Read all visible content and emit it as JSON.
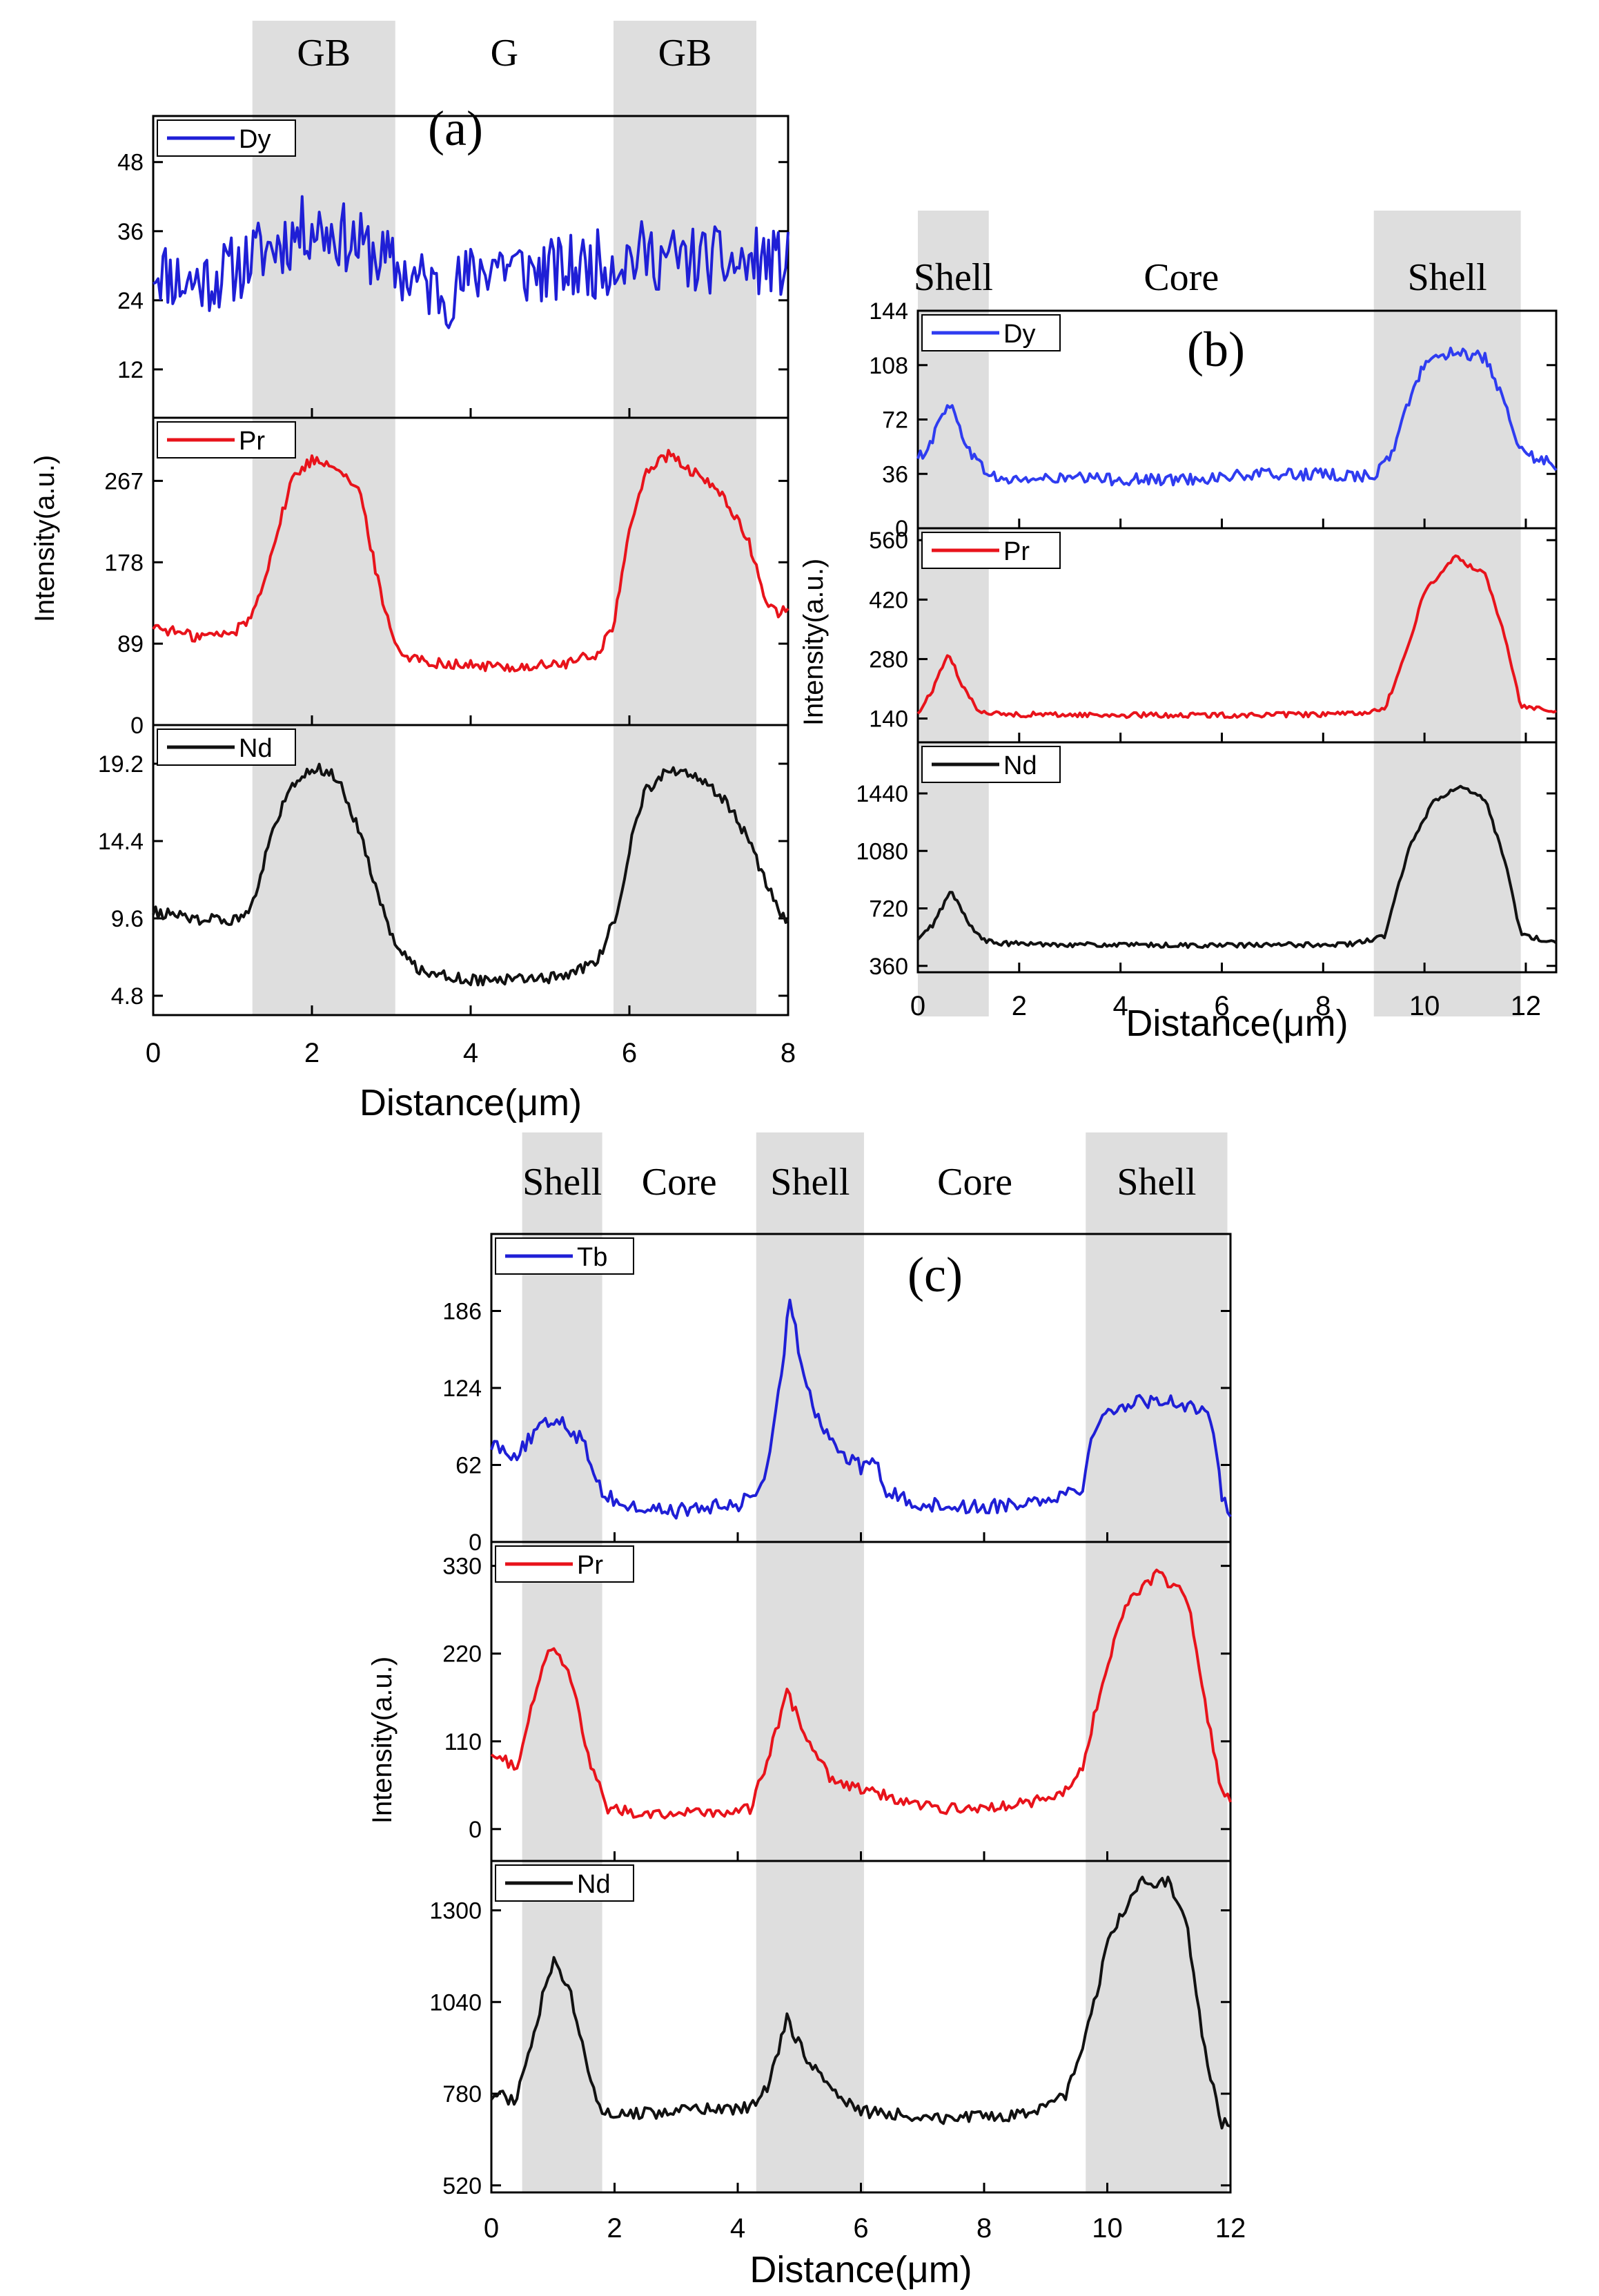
{
  "chart_data": [
    {
      "panel_label": "(a)",
      "type": "line",
      "title": "",
      "xlabel": "Distance(μm)",
      "ylabel": "Intensity(a.u.)",
      "xlim": [
        0,
        8
      ],
      "xticks": [
        "0",
        "2",
        "4",
        "6",
        "8"
      ],
      "shaded_regions": [
        {
          "label": "GB",
          "from": 1.25,
          "to": 3.05
        },
        {
          "label": "G",
          "from": 3.05,
          "to": 5.8,
          "shaded": false
        },
        {
          "label": "GB",
          "from": 5.8,
          "to": 7.6
        }
      ],
      "series": [
        {
          "name": "Dy",
          "color": "#1f1fd6",
          "ylim": [
            3.6,
            56
          ],
          "yticks": [
            "12",
            "24",
            "36",
            "48"
          ],
          "profile": [
            [
              0,
              30
            ],
            [
              0.4,
              27
            ],
            [
              0.8,
              28
            ],
            [
              1.1,
              30
            ],
            [
              1.3,
              32
            ],
            [
              1.6,
              34
            ],
            [
              2.0,
              37
            ],
            [
              2.4,
              35
            ],
            [
              2.8,
              32
            ],
            [
              3.1,
              29
            ],
            [
              3.4,
              27
            ],
            [
              3.7,
              25
            ],
            [
              4.0,
              28
            ],
            [
              4.3,
              31
            ],
            [
              4.7,
              29
            ],
            [
              5.1,
              29
            ],
            [
              5.5,
              30
            ],
            [
              5.8,
              31
            ],
            [
              6.2,
              32
            ],
            [
              6.6,
              31
            ],
            [
              7.0,
              31
            ],
            [
              7.4,
              30
            ],
            [
              7.7,
              31
            ],
            [
              8.0,
              30
            ]
          ],
          "noise": 6
        },
        {
          "name": "Pr",
          "color": "#e8131b",
          "ylim": [
            0,
            336
          ],
          "yticks": [
            "0",
            "89",
            "178",
            "267"
          ],
          "profile": [
            [
              0,
              108
            ],
            [
              0.5,
              97
            ],
            [
              1.0,
              100
            ],
            [
              1.25,
              120
            ],
            [
              1.5,
              190
            ],
            [
              1.75,
              270
            ],
            [
              2.0,
              290
            ],
            [
              2.3,
              285
            ],
            [
              2.6,
              255
            ],
            [
              2.9,
              130
            ],
            [
              3.1,
              80
            ],
            [
              3.4,
              70
            ],
            [
              4.0,
              65
            ],
            [
              4.6,
              63
            ],
            [
              5.2,
              67
            ],
            [
              5.6,
              78
            ],
            [
              5.8,
              110
            ],
            [
              6.0,
              210
            ],
            [
              6.2,
              278
            ],
            [
              6.5,
              295
            ],
            [
              6.9,
              270
            ],
            [
              7.2,
              250
            ],
            [
              7.5,
              200
            ],
            [
              7.7,
              140
            ],
            [
              7.9,
              120
            ],
            [
              8.0,
              130
            ]
          ],
          "noise": 6
        },
        {
          "name": "Nd",
          "color": "#111111",
          "ylim": [
            3.6,
            21.6
          ],
          "yticks": [
            "4.8",
            "9.6",
            "14.4",
            "19.2"
          ],
          "profile": [
            [
              0,
              10.0
            ],
            [
              0.5,
              9.6
            ],
            [
              1.0,
              9.4
            ],
            [
              1.25,
              10.5
            ],
            [
              1.5,
              15.0
            ],
            [
              1.75,
              18.0
            ],
            [
              2.0,
              19.0
            ],
            [
              2.3,
              18.5
            ],
            [
              2.6,
              15.0
            ],
            [
              2.9,
              10.0
            ],
            [
              3.1,
              7.5
            ],
            [
              3.4,
              6.3
            ],
            [
              4.0,
              5.8
            ],
            [
              4.6,
              5.8
            ],
            [
              5.2,
              6.0
            ],
            [
              5.6,
              7.0
            ],
            [
              5.85,
              10.0
            ],
            [
              6.0,
              14.0
            ],
            [
              6.2,
              17.5
            ],
            [
              6.5,
              18.8
            ],
            [
              6.9,
              18.2
            ],
            [
              7.2,
              17.0
            ],
            [
              7.5,
              14.5
            ],
            [
              7.7,
              12.0
            ],
            [
              7.9,
              10.0
            ],
            [
              8.0,
              9.5
            ]
          ],
          "noise": 0.35
        }
      ]
    },
    {
      "panel_label": "(b)",
      "type": "line",
      "title": "",
      "xlabel": "Distance(μm)",
      "ylabel": "Intensity(a.u.)",
      "xlim": [
        0,
        12.6
      ],
      "xticks": [
        "0",
        "2",
        "4",
        "6",
        "8",
        "10",
        "12"
      ],
      "shaded_regions": [
        {
          "label": "Shell",
          "from": 0,
          "to": 1.4
        },
        {
          "label": "Core",
          "from": 1.4,
          "to": 9.0,
          "shaded": false
        },
        {
          "label": "Shell",
          "from": 9.0,
          "to": 11.9
        }
      ],
      "series": [
        {
          "name": "Dy",
          "color": "#2f3cf0",
          "ylim": [
            0,
            144
          ],
          "yticks": [
            "0",
            "36",
            "72",
            "108",
            "144"
          ],
          "profile": [
            [
              0,
              45
            ],
            [
              0.3,
              60
            ],
            [
              0.6,
              85
            ],
            [
              0.9,
              60
            ],
            [
              1.2,
              42
            ],
            [
              1.6,
              32
            ],
            [
              3,
              33
            ],
            [
              5,
              32
            ],
            [
              7,
              36
            ],
            [
              8.5,
              35
            ],
            [
              9.0,
              35
            ],
            [
              9.3,
              45
            ],
            [
              9.6,
              75
            ],
            [
              10.0,
              110
            ],
            [
              10.6,
              118
            ],
            [
              11.2,
              112
            ],
            [
              11.6,
              80
            ],
            [
              11.9,
              50
            ],
            [
              12.6,
              42
            ]
          ],
          "noise": 4
        },
        {
          "name": "Pr",
          "color": "#e8131b",
          "ylim": [
            84,
            588
          ],
          "yticks": [
            "140",
            "280",
            "420",
            "560"
          ],
          "profile": [
            [
              0,
              150
            ],
            [
              0.3,
              210
            ],
            [
              0.6,
              295
            ],
            [
              0.9,
              210
            ],
            [
              1.2,
              160
            ],
            [
              1.6,
              150
            ],
            [
              4,
              148
            ],
            [
              6,
              148
            ],
            [
              8.5,
              150
            ],
            [
              9.2,
              160
            ],
            [
              9.6,
              280
            ],
            [
              10.0,
              440
            ],
            [
              10.6,
              520
            ],
            [
              11.2,
              480
            ],
            [
              11.6,
              330
            ],
            [
              11.9,
              170
            ],
            [
              12.6,
              160
            ]
          ],
          "noise": 6
        },
        {
          "name": "Nd",
          "color": "#111111",
          "ylim": [
            320,
            1760
          ],
          "yticks": [
            "360",
            "720",
            "1080",
            "1440"
          ],
          "profile": [
            [
              0,
              520
            ],
            [
              0.3,
              620
            ],
            [
              0.65,
              830
            ],
            [
              1.0,
              630
            ],
            [
              1.3,
              520
            ],
            [
              1.6,
              500
            ],
            [
              4,
              490
            ],
            [
              6,
              488
            ],
            [
              8.5,
              495
            ],
            [
              9.2,
              540
            ],
            [
              9.7,
              1100
            ],
            [
              10.2,
              1400
            ],
            [
              10.7,
              1480
            ],
            [
              11.2,
              1400
            ],
            [
              11.6,
              1000
            ],
            [
              11.9,
              560
            ],
            [
              12.6,
              500
            ]
          ],
          "noise": 15
        }
      ]
    },
    {
      "panel_label": "(c)",
      "type": "line",
      "title": "",
      "xlabel": "Distance(μm)",
      "ylabel": "Intensity(a.u.)",
      "xlim": [
        0,
        12
      ],
      "xticks": [
        "0",
        "2",
        "4",
        "6",
        "8",
        "10",
        "12"
      ],
      "shaded_regions": [
        {
          "label": "Shell",
          "from": 0.5,
          "to": 1.8
        },
        {
          "label": "Core",
          "from": 1.8,
          "to": 4.3,
          "shaded": false
        },
        {
          "label": "Shell",
          "from": 4.3,
          "to": 6.05
        },
        {
          "label": "Core",
          "from": 6.05,
          "to": 9.65,
          "shaded": false
        },
        {
          "label": "Shell",
          "from": 9.65,
          "to": 11.95
        }
      ],
      "series": [
        {
          "name": "Tb",
          "color": "#1f1fd6",
          "ylim": [
            0,
            248
          ],
          "yticks": [
            "0",
            "62",
            "124",
            "186"
          ],
          "profile": [
            [
              0,
              80
            ],
            [
              0.4,
              70
            ],
            [
              0.8,
              92
            ],
            [
              1.1,
              100
            ],
            [
              1.5,
              80
            ],
            [
              1.8,
              40
            ],
            [
              2.2,
              28
            ],
            [
              3,
              25
            ],
            [
              4,
              30
            ],
            [
              4.3,
              40
            ],
            [
              4.5,
              60
            ],
            [
              4.7,
              130
            ],
            [
              4.85,
              200
            ],
            [
              5.0,
              150
            ],
            [
              5.3,
              100
            ],
            [
              5.7,
              70
            ],
            [
              6.0,
              60
            ],
            [
              6.2,
              70
            ],
            [
              6.4,
              40
            ],
            [
              7,
              30
            ],
            [
              8,
              28
            ],
            [
              9,
              35
            ],
            [
              9.6,
              45
            ],
            [
              9.8,
              95
            ],
            [
              10.2,
              110
            ],
            [
              10.8,
              115
            ],
            [
              11.4,
              110
            ],
            [
              11.7,
              95
            ],
            [
              11.85,
              40
            ],
            [
              12,
              25
            ]
          ],
          "noise": 6
        },
        {
          "name": "Pr",
          "color": "#e8131b",
          "ylim": [
            -40,
            360
          ],
          "yticks": [
            "0",
            "110",
            "220",
            "330"
          ],
          "profile": [
            [
              0,
              100
            ],
            [
              0.4,
              75
            ],
            [
              0.7,
              170
            ],
            [
              1.0,
              235
            ],
            [
              1.3,
              190
            ],
            [
              1.6,
              80
            ],
            [
              1.9,
              25
            ],
            [
              2.5,
              20
            ],
            [
              3.5,
              20
            ],
            [
              4.2,
              25
            ],
            [
              4.5,
              90
            ],
            [
              4.8,
              170
            ],
            [
              5.1,
              120
            ],
            [
              5.5,
              65
            ],
            [
              6.0,
              50
            ],
            [
              6.5,
              40
            ],
            [
              7.2,
              25
            ],
            [
              8.5,
              30
            ],
            [
              9.2,
              40
            ],
            [
              9.6,
              75
            ],
            [
              9.9,
              180
            ],
            [
              10.3,
              280
            ],
            [
              10.8,
              320
            ],
            [
              11.3,
              290
            ],
            [
              11.6,
              150
            ],
            [
              11.85,
              50
            ],
            [
              12,
              35
            ]
          ],
          "noise": 7
        },
        {
          "name": "Nd",
          "color": "#111111",
          "ylim": [
            500,
            1440
          ],
          "yticks": [
            "520",
            "780",
            "1040",
            "1300"
          ],
          "profile": [
            [
              0,
              780
            ],
            [
              0.4,
              760
            ],
            [
              0.75,
              1000
            ],
            [
              1.0,
              1160
            ],
            [
              1.3,
              1050
            ],
            [
              1.6,
              820
            ],
            [
              1.85,
              720
            ],
            [
              3,
              730
            ],
            [
              4.2,
              740
            ],
            [
              4.5,
              800
            ],
            [
              4.8,
              990
            ],
            [
              5.1,
              890
            ],
            [
              5.5,
              790
            ],
            [
              6.0,
              730
            ],
            [
              7.5,
              710
            ],
            [
              8.8,
              720
            ],
            [
              9.3,
              770
            ],
            [
              9.6,
              900
            ],
            [
              10.0,
              1200
            ],
            [
              10.5,
              1380
            ],
            [
              11.0,
              1380
            ],
            [
              11.3,
              1250
            ],
            [
              11.6,
              880
            ],
            [
              11.85,
              700
            ],
            [
              12,
              680
            ]
          ],
          "noise": 18
        }
      ]
    }
  ]
}
